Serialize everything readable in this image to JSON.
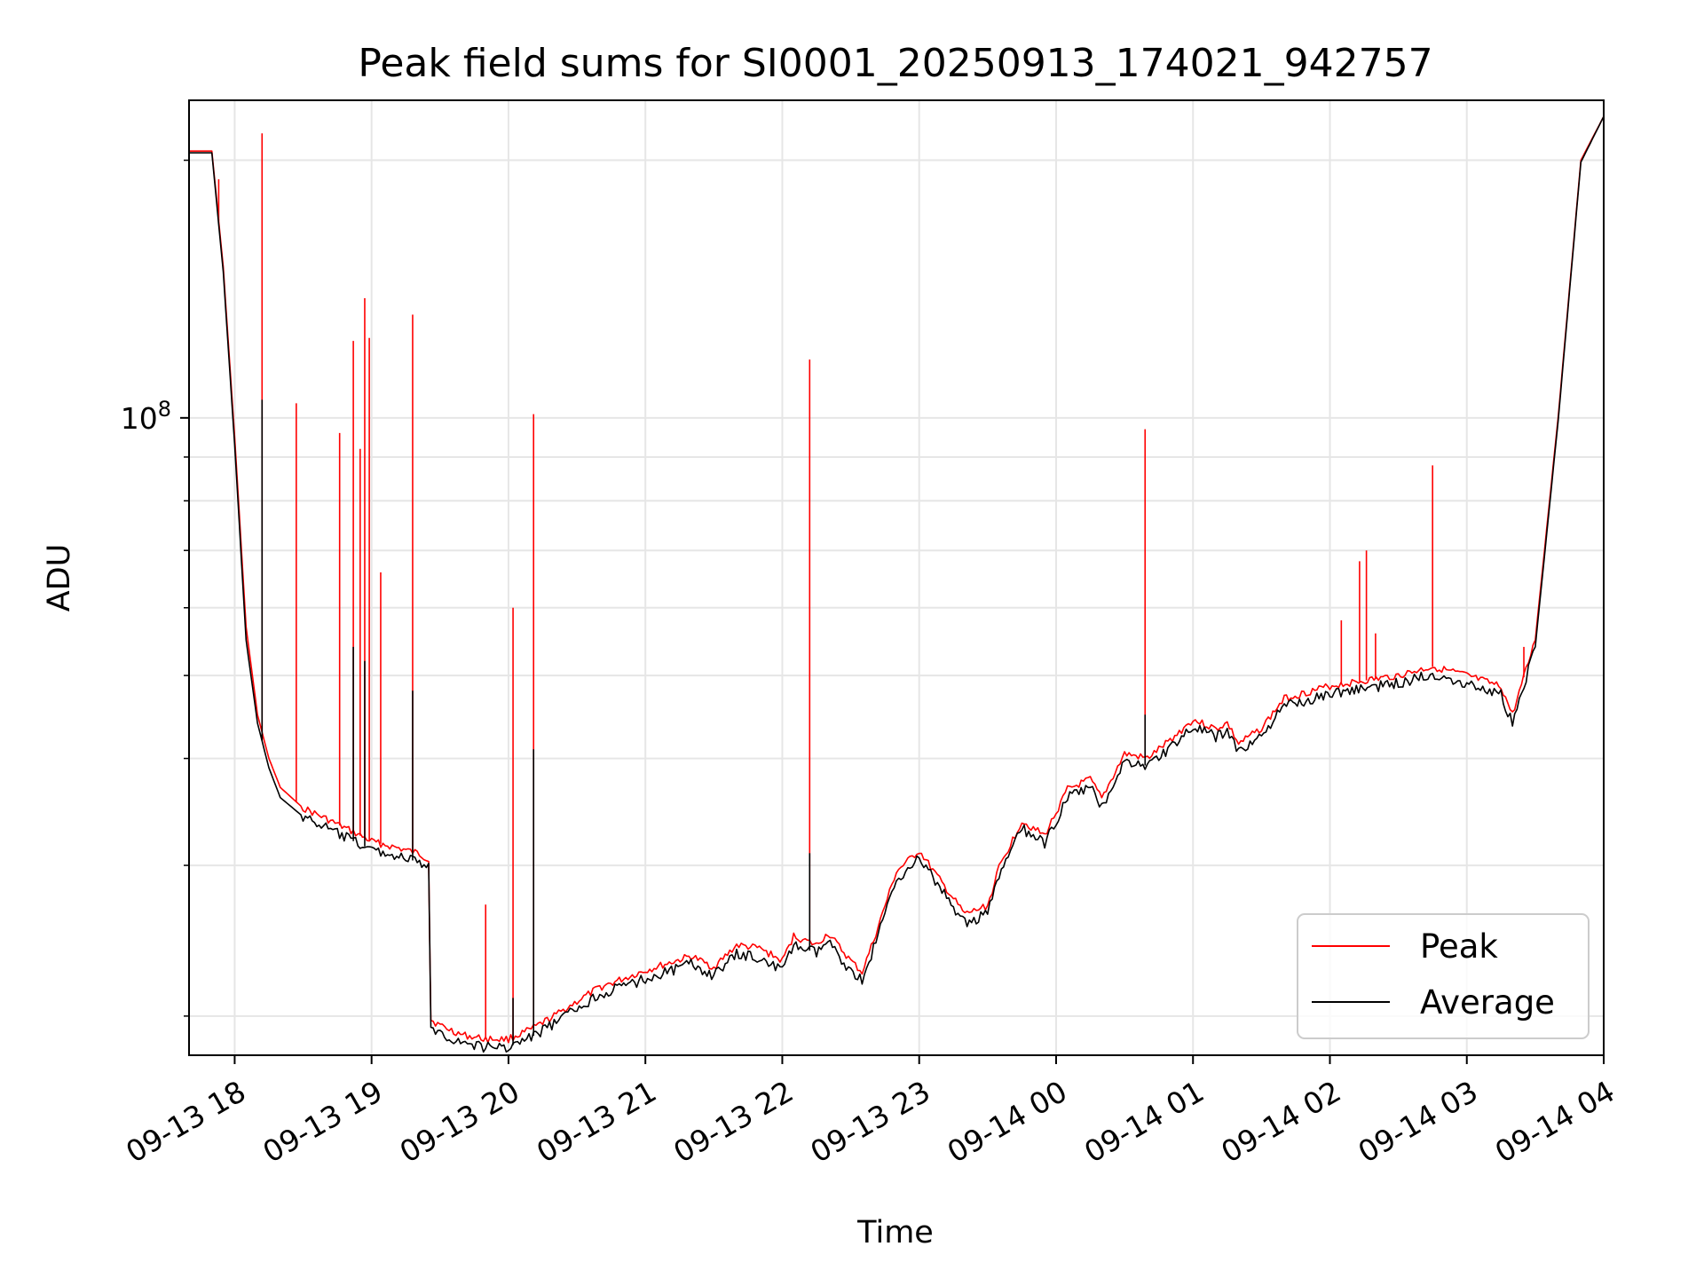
{
  "chart_data": {
    "type": "line",
    "title": "Peak field sums for SI0001_20250913_174021_942757",
    "xlabel": "Time",
    "ylabel": "ADU",
    "x_ticks": [
      "09-13 18",
      "09-13 19",
      "09-13 20",
      "09-13 21",
      "09-13 22",
      "09-13 23",
      "09-14 00",
      "09-14 01",
      "09-14 02",
      "09-14 03",
      "09-14 04"
    ],
    "y_scale": "log",
    "y_tick_label": {
      "base": "10",
      "exponent": "8"
    },
    "y_major_tick": 100000000,
    "y_minor_ticks": [
      20000000,
      30000000,
      40000000,
      50000000,
      60000000,
      70000000,
      80000000,
      90000000,
      200000000
    ],
    "xlim": [
      "2025-09-13 17:40",
      "2025-09-14 04:00"
    ],
    "ylim": [
      18000000,
      235000000
    ],
    "grid": true,
    "legend": {
      "position": "bottom-right",
      "entries": [
        "Peak",
        "Average"
      ]
    },
    "colors": {
      "Peak": "#ff0000",
      "Average": "#000000"
    },
    "series": [
      {
        "name": "Peak",
        "color": "#ff0000",
        "x": [
          "2025-09-13 17:40",
          "2025-09-13 17:50",
          "2025-09-13 17:55",
          "2025-09-13 18:00",
          "2025-09-13 18:05",
          "2025-09-13 18:10",
          "2025-09-13 18:15",
          "2025-09-13 18:20",
          "2025-09-13 18:30",
          "2025-09-13 18:40",
          "2025-09-13 18:50",
          "2025-09-13 19:00",
          "2025-09-13 19:10",
          "2025-09-13 19:20",
          "2025-09-13 19:25",
          "2025-09-13 19:26",
          "2025-09-13 19:30",
          "2025-09-13 19:40",
          "2025-09-13 19:50",
          "2025-09-13 20:00",
          "2025-09-13 20:10",
          "2025-09-13 20:20",
          "2025-09-13 20:30",
          "2025-09-13 20:40",
          "2025-09-13 21:00",
          "2025-09-13 21:20",
          "2025-09-13 21:30",
          "2025-09-13 21:40",
          "2025-09-13 21:50",
          "2025-09-13 22:00",
          "2025-09-13 22:05",
          "2025-09-13 22:15",
          "2025-09-13 22:20",
          "2025-09-13 22:30",
          "2025-09-13 22:35",
          "2025-09-13 22:40",
          "2025-09-13 22:50",
          "2025-09-13 23:00",
          "2025-09-13 23:10",
          "2025-09-13 23:20",
          "2025-09-13 23:30",
          "2025-09-13 23:35",
          "2025-09-13 23:45",
          "2025-09-13 23:55",
          "2025-09-14 00:05",
          "2025-09-14 00:15",
          "2025-09-14 00:20",
          "2025-09-14 00:30",
          "2025-09-14 00:40",
          "2025-09-14 00:50",
          "2025-09-14 01:00",
          "2025-09-14 01:10",
          "2025-09-14 01:15",
          "2025-09-14 01:20",
          "2025-09-14 01:30",
          "2025-09-14 01:40",
          "2025-09-14 02:00",
          "2025-09-14 02:30",
          "2025-09-14 02:45",
          "2025-09-14 03:00",
          "2025-09-14 03:15",
          "2025-09-14 03:20",
          "2025-09-14 03:30",
          "2025-09-14 03:40",
          "2025-09-14 03:50",
          "2025-09-14 04:00"
        ],
        "values": [
          205000000,
          205000000,
          150000000,
          95000000,
          57000000,
          45000000,
          40000000,
          37000000,
          35000000,
          34000000,
          33000000,
          32000000,
          31500000,
          31000000,
          30500000,
          19800000,
          19500000,
          19000000,
          18800000,
          18800000,
          19300000,
          20000000,
          20800000,
          21600000,
          22600000,
          23500000,
          22800000,
          24200000,
          24000000,
          23200000,
          24800000,
          24200000,
          25000000,
          23200000,
          22500000,
          24500000,
          29500000,
          31200000,
          28600000,
          26300000,
          26900000,
          29800000,
          33800000,
          32500000,
          36800000,
          37800000,
          35900000,
          40500000,
          40000000,
          42000000,
          44400000,
          43300000,
          44000000,
          41600000,
          43400000,
          47000000,
          48600000,
          50000000,
          51200000,
          50000000,
          48500000,
          45000000,
          55000000,
          100000000,
          200000000,
          225000000
        ],
        "spikes": [
          {
            "x": "2025-09-13 17:53",
            "value": 190000000
          },
          {
            "x": "2025-09-13 18:12",
            "value": 215000000
          },
          {
            "x": "2025-09-13 18:27",
            "value": 104000000
          },
          {
            "x": "2025-09-13 18:46",
            "value": 96000000
          },
          {
            "x": "2025-09-13 18:52",
            "value": 123000000
          },
          {
            "x": "2025-09-13 18:55",
            "value": 92000000
          },
          {
            "x": "2025-09-13 18:57",
            "value": 138000000
          },
          {
            "x": "2025-09-13 18:59",
            "value": 124000000
          },
          {
            "x": "2025-09-13 19:04",
            "value": 66000000
          },
          {
            "x": "2025-09-13 19:18",
            "value": 132000000
          },
          {
            "x": "2025-09-13 19:50",
            "value": 27000000
          },
          {
            "x": "2025-09-13 20:02",
            "value": 60000000
          },
          {
            "x": "2025-09-13 20:11",
            "value": 101000000
          },
          {
            "x": "2025-09-13 22:12",
            "value": 117000000
          },
          {
            "x": "2025-09-14 00:39",
            "value": 97000000
          },
          {
            "x": "2025-09-14 02:05",
            "value": 58000000
          },
          {
            "x": "2025-09-14 02:13",
            "value": 68000000
          },
          {
            "x": "2025-09-14 02:16",
            "value": 70000000
          },
          {
            "x": "2025-09-14 02:20",
            "value": 56000000
          },
          {
            "x": "2025-09-14 02:45",
            "value": 88000000
          },
          {
            "x": "2025-09-14 03:25",
            "value": 54000000
          }
        ]
      },
      {
        "name": "Average",
        "color": "#000000",
        "x": [
          "2025-09-13 17:40",
          "2025-09-13 17:50",
          "2025-09-13 17:55",
          "2025-09-13 18:00",
          "2025-09-13 18:05",
          "2025-09-13 18:10",
          "2025-09-13 18:15",
          "2025-09-13 18:20",
          "2025-09-13 18:30",
          "2025-09-13 18:40",
          "2025-09-13 18:50",
          "2025-09-13 19:00",
          "2025-09-13 19:10",
          "2025-09-13 19:20",
          "2025-09-13 19:25",
          "2025-09-13 19:26",
          "2025-09-13 19:30",
          "2025-09-13 19:40",
          "2025-09-13 19:50",
          "2025-09-13 20:00",
          "2025-09-13 20:10",
          "2025-09-13 20:20",
          "2025-09-13 20:30",
          "2025-09-13 20:40",
          "2025-09-13 21:00",
          "2025-09-13 21:20",
          "2025-09-13 21:30",
          "2025-09-13 21:40",
          "2025-09-13 21:50",
          "2025-09-13 22:00",
          "2025-09-13 22:05",
          "2025-09-13 22:15",
          "2025-09-13 22:20",
          "2025-09-13 22:30",
          "2025-09-13 22:35",
          "2025-09-13 22:40",
          "2025-09-13 22:50",
          "2025-09-13 23:00",
          "2025-09-13 23:10",
          "2025-09-13 23:20",
          "2025-09-13 23:30",
          "2025-09-13 23:35",
          "2025-09-13 23:45",
          "2025-09-13 23:55",
          "2025-09-14 00:05",
          "2025-09-14 00:15",
          "2025-09-14 00:20",
          "2025-09-14 00:30",
          "2025-09-14 00:40",
          "2025-09-14 00:50",
          "2025-09-14 01:00",
          "2025-09-14 01:10",
          "2025-09-14 01:15",
          "2025-09-14 01:20",
          "2025-09-14 01:30",
          "2025-09-14 01:40",
          "2025-09-14 02:00",
          "2025-09-14 02:30",
          "2025-09-14 02:45",
          "2025-09-14 03:00",
          "2025-09-14 03:15",
          "2025-09-14 03:20",
          "2025-09-14 03:30",
          "2025-09-14 03:40",
          "2025-09-14 03:50",
          "2025-09-14 04:00"
        ],
        "values": [
          204000000,
          204000000,
          148000000,
          93000000,
          55000000,
          44000000,
          39000000,
          36000000,
          34200000,
          33200000,
          32200000,
          31300000,
          30800000,
          30300000,
          29800000,
          19400000,
          19100000,
          18600000,
          18400000,
          18400000,
          18900000,
          19600000,
          20400000,
          21200000,
          22100000,
          23000000,
          22300000,
          23600000,
          23400000,
          22600000,
          24200000,
          23700000,
          24400000,
          22600000,
          22000000,
          24000000,
          28900000,
          30600000,
          28000000,
          25700000,
          26300000,
          29200000,
          33100000,
          31800000,
          36000000,
          37000000,
          35100000,
          39700000,
          39200000,
          41200000,
          43500000,
          42400000,
          43100000,
          40700000,
          42500000,
          46000000,
          47600000,
          49000000,
          50200000,
          49000000,
          47500000,
          44000000,
          54000000,
          99000000,
          199000000,
          225000000
        ],
        "spikes": [
          {
            "x": "2025-09-13 18:12",
            "value": 105000000
          },
          {
            "x": "2025-09-13 18:52",
            "value": 54000000
          },
          {
            "x": "2025-09-13 18:57",
            "value": 52000000
          },
          {
            "x": "2025-09-13 19:18",
            "value": 48000000
          },
          {
            "x": "2025-09-13 20:02",
            "value": 21000000
          },
          {
            "x": "2025-09-13 20:11",
            "value": 41000000
          },
          {
            "x": "2025-09-13 22:12",
            "value": 31000000
          },
          {
            "x": "2025-09-14 00:39",
            "value": 45000000
          }
        ]
      }
    ]
  }
}
